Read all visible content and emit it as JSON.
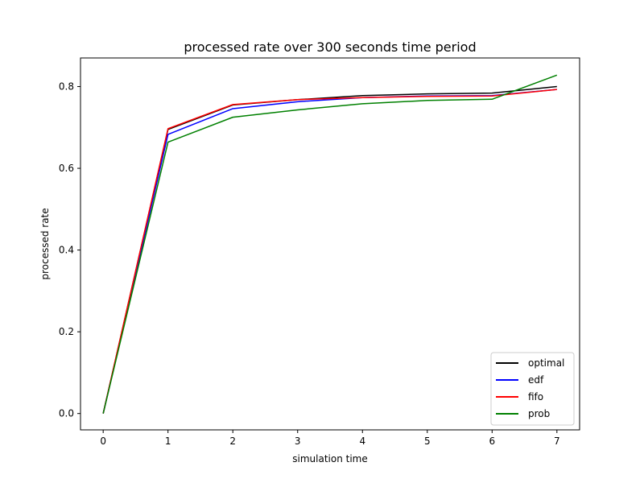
{
  "chart_data": {
    "type": "line",
    "title": "processed rate over 300 seconds time period",
    "xlabel": "simulation time",
    "ylabel": "processed rate",
    "x": [
      0,
      1,
      2,
      3,
      4,
      5,
      6,
      7
    ],
    "xlim": [
      -0.35,
      7.35
    ],
    "ylim": [
      -0.04,
      0.87
    ],
    "xticks": [
      0,
      1,
      2,
      3,
      4,
      5,
      6,
      7
    ],
    "xtick_labels": [
      "0",
      "1",
      "2",
      "3",
      "4",
      "5",
      "6",
      "7"
    ],
    "yticks": [
      0.0,
      0.2,
      0.4,
      0.6,
      0.8
    ],
    "ytick_labels": [
      "0.0",
      "0.2",
      "0.4",
      "0.6",
      "0.8"
    ],
    "grid": false,
    "legend_position": "bottom-right",
    "series": [
      {
        "name": "optimal",
        "color": "#000000",
        "values": [
          0.0,
          0.695,
          0.755,
          0.768,
          0.778,
          0.782,
          0.784,
          0.8
        ]
      },
      {
        "name": "edf",
        "color": "#0000ff",
        "values": [
          0.0,
          0.683,
          0.746,
          0.763,
          0.773,
          0.777,
          0.778,
          0.793
        ]
      },
      {
        "name": "fifo",
        "color": "#ff0000",
        "values": [
          0.0,
          0.697,
          0.756,
          0.768,
          0.773,
          0.776,
          0.777,
          0.793
        ]
      },
      {
        "name": "prob",
        "color": "#008000",
        "values": [
          0.0,
          0.664,
          0.725,
          0.743,
          0.758,
          0.766,
          0.769,
          0.828
        ]
      }
    ]
  }
}
